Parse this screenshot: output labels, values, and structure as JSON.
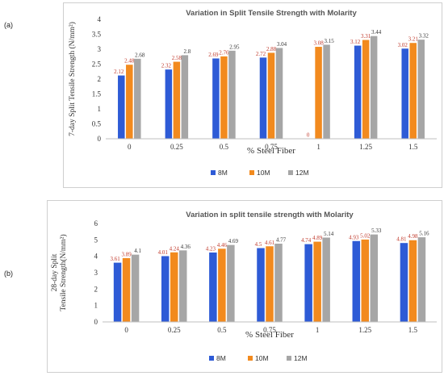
{
  "panels": [
    {
      "letter": "(a)"
    },
    {
      "letter": "(b)"
    }
  ],
  "colors": {
    "8M": "#2e5bd6",
    "10M": "#f28a1e",
    "12M": "#a6a6a6",
    "label_8M": "#c0392b",
    "label_12M": "#333333"
  },
  "chart_data": [
    {
      "type": "bar",
      "title": "Variation in Split Tensile Strength with Molarity",
      "xlabel": "% Steel Fiber",
      "ylabel": "7-day Split Tensile Strength (N/mm²)",
      "categories": [
        "0",
        "0.25",
        "0.5",
        "0.75",
        "1",
        "1.25",
        "1.5"
      ],
      "ylim": [
        0,
        4
      ],
      "yticks": [
        "0",
        "0.5",
        "1",
        "1.5",
        "2",
        "2.5",
        "3",
        "3.5",
        "4"
      ],
      "grid": false,
      "legend": "bottom",
      "series": [
        {
          "name": "8M",
          "values": [
            2.12,
            2.32,
            2.69,
            2.72,
            0,
            3.12,
            3.02
          ],
          "labels": [
            "2.12",
            "2.32",
            "2.69",
            "2.72",
            "0",
            "3.12",
            "3.02"
          ]
        },
        {
          "name": "10M",
          "values": [
            2.48,
            2.58,
            2.76,
            2.88,
            3.08,
            3.31,
            3.21
          ],
          "labels": [
            "2.48",
            "2.58",
            "2.76",
            "2.88",
            "3.08",
            "3.31",
            "3.21"
          ]
        },
        {
          "name": "12M",
          "values": [
            2.68,
            2.8,
            2.95,
            3.04,
            3.15,
            3.44,
            3.32
          ],
          "labels": [
            "2.68",
            "2.8",
            "2.95",
            "3.04",
            "3.15",
            "3.44",
            "3.32"
          ]
        }
      ]
    },
    {
      "type": "bar",
      "title": "Variation in split tensile strength with Molarity",
      "xlabel": "% Steel Fiber",
      "ylabel": "28-day Split Tensile Strength(N/mm²)",
      "categories": [
        "0",
        "0.25",
        "0.5",
        "0.75",
        "1",
        "1.25",
        "1.5"
      ],
      "ylim": [
        0,
        6
      ],
      "yticks": [
        "0",
        "1",
        "2",
        "3",
        "4",
        "5",
        "6"
      ],
      "grid": false,
      "legend": "bottom",
      "series": [
        {
          "name": "8M",
          "values": [
            3.61,
            4.01,
            4.23,
            4.5,
            4.74,
            4.93,
            4.81
          ],
          "labels": [
            "3.61",
            "4.01",
            "4.23",
            "4.5",
            "4.74",
            "4.93",
            "4.81"
          ]
        },
        {
          "name": "10M",
          "values": [
            3.89,
            4.24,
            4.46,
            4.61,
            4.89,
            5.02,
            4.98
          ],
          "labels": [
            "3.89",
            "4.24",
            "4.46",
            "4.61",
            "4.89",
            "5.02",
            "4.98"
          ]
        },
        {
          "name": "12M",
          "values": [
            4.1,
            4.36,
            4.69,
            4.77,
            5.14,
            5.33,
            5.16
          ],
          "labels": [
            "4.1",
            "4.36",
            "4.69",
            "4.77",
            "5.14",
            "5.33",
            "5.16"
          ]
        }
      ]
    }
  ]
}
